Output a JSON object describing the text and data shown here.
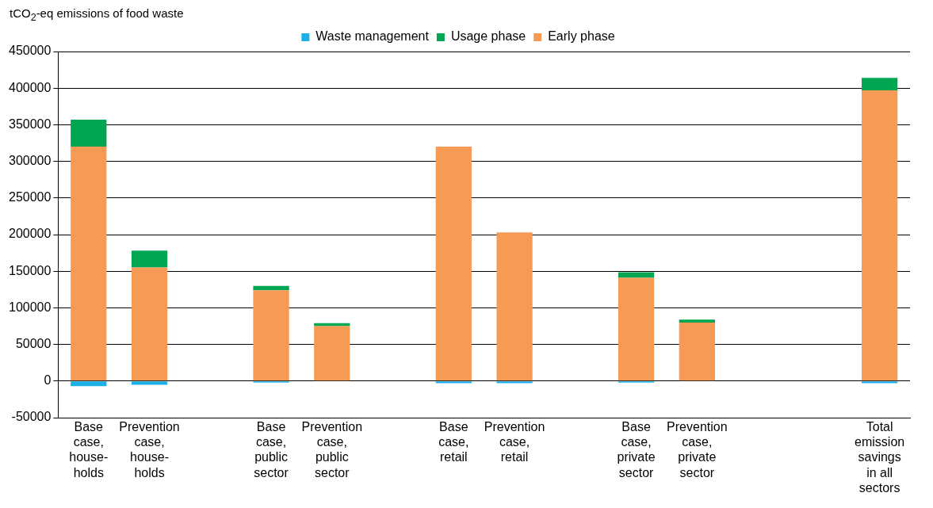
{
  "chart_data": {
    "type": "bar",
    "ylabel": "tCO$_{2}$-eq emissions of food waste",
    "stacked": true,
    "categories": [
      "Base\ncase,\nhouse-\nholds",
      "Prevention\ncase,\nhouse-\nholds",
      null,
      "Base\ncase,\npublic\nsector",
      "Prevention\ncase,\npublic\nsector",
      null,
      "Base\ncase,\nretail",
      "Prevention\ncase,\nretail",
      null,
      "Base\ncase,\nprivate\nsector",
      "Prevention\ncase,\nprivate\nsector",
      null,
      null,
      "Total\nemission\nsavings\nin all\nsectors"
    ],
    "series": [
      {
        "name": "Early phase",
        "color": "#f79a56",
        "values": [
          320000,
          155000,
          null,
          124000,
          75000,
          null,
          320000,
          203000,
          null,
          141000,
          80000,
          null,
          null,
          397000
        ]
      },
      {
        "name": "Usage phase",
        "color": "#00a651",
        "values": [
          37000,
          23000,
          null,
          6000,
          4000,
          null,
          null,
          null,
          null,
          7500,
          4000,
          null,
          null,
          17000
        ]
      },
      {
        "name": "Waste management",
        "color": "#1ab0e8",
        "values": [
          -7000,
          -5000,
          null,
          -2000,
          null,
          null,
          -3000,
          -3000,
          null,
          -2000,
          null,
          null,
          null,
          -3000
        ]
      }
    ],
    "ylim": [
      -50000,
      450000
    ],
    "yticks": [
      -50000,
      0,
      50000,
      100000,
      150000,
      200000,
      250000,
      300000,
      350000,
      400000,
      450000
    ],
    "grid": "y",
    "legend": "top right"
  }
}
